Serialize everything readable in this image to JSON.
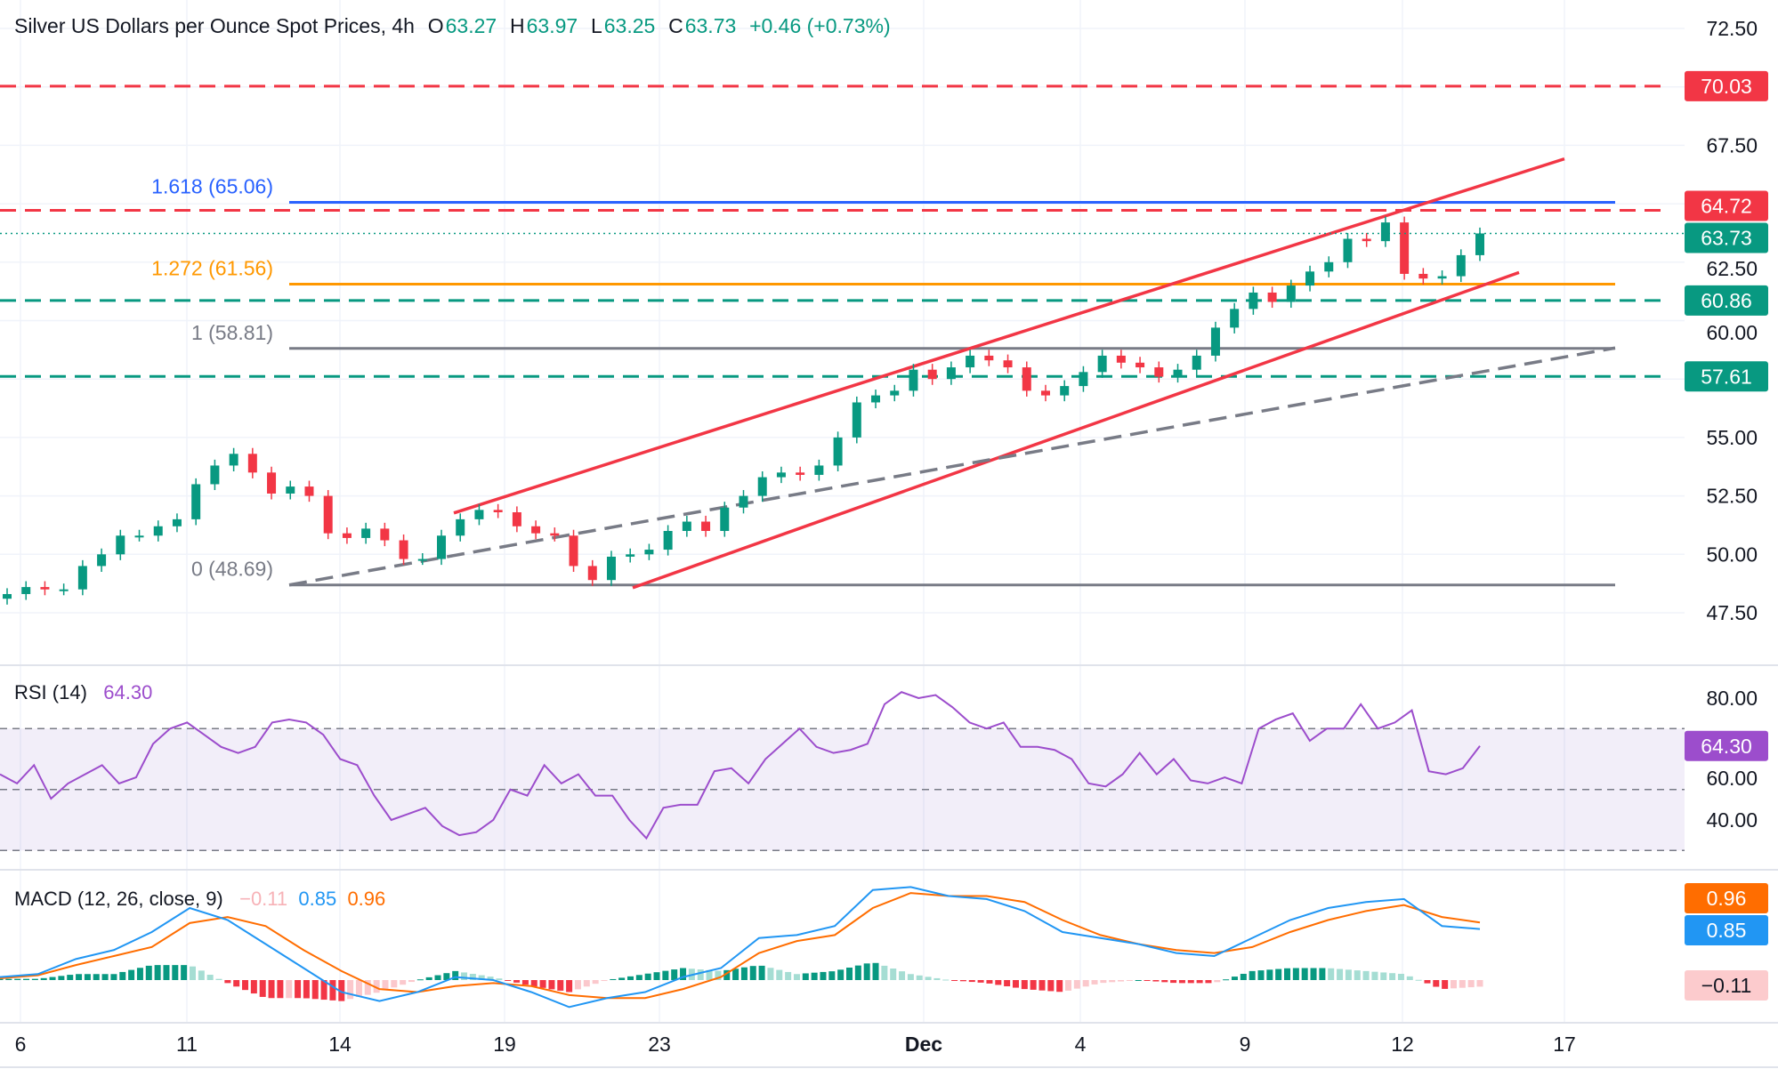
{
  "header": {
    "title": "Silver US Dollars per Ounce Spot Prices, 4h",
    "o_label": "O",
    "o": "63.27",
    "h_label": "H",
    "h": "63.97",
    "l_label": "L",
    "l": "63.25",
    "c_label": "C",
    "c": "63.73",
    "change": "+0.46 (+0.73%)"
  },
  "colors": {
    "up": "#089981",
    "down": "#f23645",
    "fib_1618": "#2962ff",
    "fib_1272": "#ff9800",
    "fib_gray": "#787b86",
    "rsi": "#9c4dcc",
    "macd": "#2196f3",
    "signal": "#ff6d00"
  },
  "chart_data": [
    {
      "type": "candlestick",
      "title": "Silver US Dollars per Ounce Spot Prices, 4h",
      "x_ticks": [
        "6",
        "11",
        "14",
        "19",
        "23",
        "Dec",
        "4",
        "9",
        "12",
        "17"
      ],
      "y_ticks": [
        "72.50",
        "67.50",
        "62.50",
        "60.00",
        "55.00",
        "52.50",
        "50.00",
        "47.50"
      ],
      "ylim": [
        47.5,
        72.5
      ],
      "closes": [
        48.3,
        48.6,
        48.5,
        48.5,
        49.5,
        50.0,
        50.8,
        50.8,
        51.2,
        51.5,
        53.0,
        53.8,
        54.3,
        53.5,
        52.6,
        52.9,
        52.5,
        50.9,
        50.7,
        51.1,
        50.6,
        49.8,
        49.8,
        50.8,
        51.5,
        51.9,
        51.8,
        51.2,
        50.9,
        50.8,
        49.5,
        48.9,
        49.9,
        50.0,
        50.2,
        51.0,
        51.4,
        51.0,
        52.0,
        52.5,
        53.3,
        53.5,
        53.4,
        53.8,
        55.0,
        56.5,
        56.8,
        57.0,
        57.9,
        57.5,
        58.0,
        58.5,
        58.3,
        58.0,
        57.0,
        56.8,
        57.2,
        57.8,
        58.5,
        58.2,
        58.0,
        57.6,
        57.9,
        58.5,
        59.7,
        60.5,
        61.2,
        60.8,
        61.5,
        62.1,
        62.5,
        63.5,
        63.4,
        64.2,
        62.0,
        61.8,
        61.9,
        62.8,
        63.73
      ],
      "levels": [
        {
          "value": 70.03,
          "label": "70.03",
          "style": "dashed",
          "color": "#f23645"
        },
        {
          "value": 64.72,
          "label": "64.72",
          "style": "dashed",
          "color": "#f23645"
        },
        {
          "value": 60.86,
          "label": "60.86",
          "style": "dashed",
          "color": "#089981"
        },
        {
          "value": 57.61,
          "label": "57.61",
          "style": "dashed",
          "color": "#089981"
        }
      ],
      "current_price": {
        "value": 63.73,
        "label": "63.73"
      },
      "fibonacci": [
        {
          "value": 65.06,
          "label": "1.618 (65.06)",
          "color": "#2962ff"
        },
        {
          "value": 61.56,
          "label": "1.272 (61.56)",
          "color": "#ff9800"
        },
        {
          "value": 58.81,
          "label": "1 (58.81)",
          "color": "#787b86"
        },
        {
          "value": 48.69,
          "label": "0 (48.69)",
          "color": "#787b86"
        }
      ],
      "trendlines": [
        {
          "name": "channel-upper",
          "from": 51.77,
          "to": 66.92,
          "color": "#f23645",
          "style": "solid"
        },
        {
          "name": "channel-lower",
          "from": 48.57,
          "to": 62.06,
          "color": "#f23645",
          "style": "solid"
        },
        {
          "name": "support-trend",
          "from": 48.69,
          "to": 58.83,
          "color": "#787b86",
          "style": "dashed"
        }
      ]
    },
    {
      "type": "line",
      "title": "RSI (14)",
      "value_label": "64.30",
      "y_ticks": [
        "80.00",
        "60.00",
        "40.00"
      ],
      "ylim": [
        30,
        85
      ],
      "bands": [
        70,
        50,
        30
      ],
      "values": [
        55,
        52,
        58,
        47,
        52,
        55,
        58,
        52,
        54,
        65,
        70,
        72,
        68,
        64,
        62,
        64,
        72,
        73,
        72,
        68,
        60,
        58,
        48,
        40,
        42,
        44,
        38,
        35,
        36,
        40,
        50,
        48,
        58,
        52,
        55,
        48,
        48,
        40,
        34,
        44,
        45,
        45,
        56,
        57,
        52,
        60,
        65,
        70,
        64,
        62,
        63,
        65,
        78,
        82,
        80,
        81,
        77,
        72,
        70,
        72,
        64,
        64,
        63,
        60,
        52,
        51,
        55,
        62,
        55,
        60,
        53,
        52,
        54,
        52,
        70,
        73,
        75,
        66,
        70,
        70,
        78,
        70,
        72,
        76,
        56,
        55,
        57,
        64.3
      ]
    },
    {
      "type": "line",
      "title": "MACD (12, 26, close, 9)",
      "hist_label": "−0.11",
      "macd_label": "0.85",
      "signal_label": "0.96",
      "legend_hist": "−0.11",
      "legend_macd": "0.85",
      "legend_signal": "0.96",
      "macd": [
        0.05,
        0.1,
        0.35,
        0.5,
        0.8,
        1.2,
        1.0,
        0.6,
        0.2,
        -0.2,
        -0.35,
        -0.2,
        0.05,
        0.0,
        -0.2,
        -0.45,
        -0.3,
        -0.2,
        0.05,
        0.2,
        0.7,
        0.75,
        0.9,
        1.5,
        1.55,
        1.4,
        1.35,
        1.15,
        0.8,
        0.7,
        0.6,
        0.45,
        0.4,
        0.7,
        1.0,
        1.2,
        1.3,
        1.35,
        0.9,
        0.85
      ],
      "signal": [
        0.03,
        0.08,
        0.25,
        0.4,
        0.55,
        0.95,
        1.05,
        0.9,
        0.5,
        0.15,
        -0.15,
        -0.2,
        -0.1,
        -0.05,
        -0.1,
        -0.25,
        -0.3,
        -0.3,
        -0.15,
        0.05,
        0.45,
        0.65,
        0.75,
        1.2,
        1.45,
        1.4,
        1.4,
        1.3,
        1.0,
        0.75,
        0.6,
        0.5,
        0.45,
        0.55,
        0.8,
        1.0,
        1.15,
        1.25,
        1.05,
        0.96
      ]
    }
  ]
}
